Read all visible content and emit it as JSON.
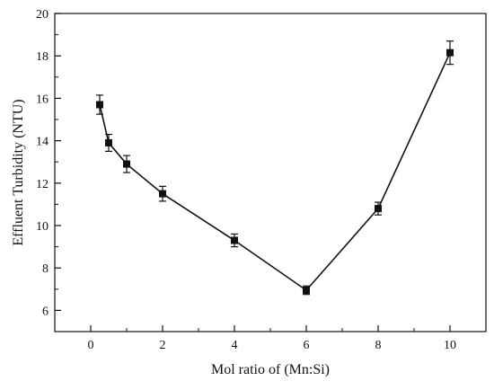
{
  "chart_data": {
    "type": "line",
    "title": "",
    "xlabel": "Mol ratio of (Mn:Si)",
    "ylabel": "Effluent Turbidity (NTU)",
    "xlim": [
      -1,
      11
    ],
    "ylim": [
      5,
      20
    ],
    "x_ticks": [
      0,
      2,
      4,
      6,
      8,
      10
    ],
    "y_ticks": [
      6,
      8,
      10,
      12,
      14,
      16,
      18,
      20
    ],
    "grid": false,
    "legend": "none",
    "colors": {
      "line": "#111111",
      "marker": "#111111",
      "axes": "#111111"
    },
    "series": [
      {
        "x": [
          0.25,
          0.5,
          1,
          2,
          4,
          6,
          8,
          10
        ],
        "y": [
          15.7,
          13.9,
          12.9,
          11.5,
          9.3,
          6.95,
          10.8,
          18.15
        ],
        "error": [
          0.45,
          0.4,
          0.4,
          0.35,
          0.3,
          0.2,
          0.3,
          0.55
        ]
      }
    ]
  }
}
